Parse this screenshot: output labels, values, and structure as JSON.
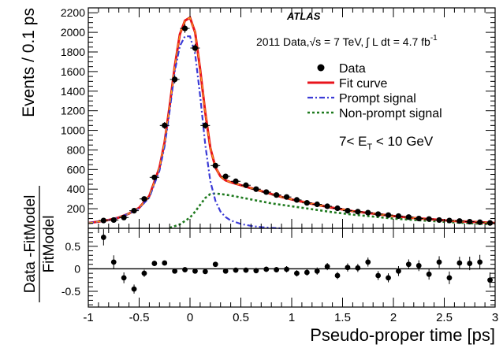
{
  "chart_data": {
    "type": "scatter",
    "experiment": "ATLAS",
    "dataset_label": "2011 Data,",
    "energy_label": "√s = 7 TeV,",
    "lumi_label": "∫ L dt = 4.7 fb",
    "lumi_superscript": "-1",
    "kinematic_range": "7< E_T < 10 GeV",
    "kinematic_parts": {
      "left": "7< E",
      "sub": "T",
      "right": " < 10 GeV"
    },
    "xlabel": "Pseudo-proper time [ps]",
    "ylabel_top": "Events / 0.1 ps",
    "ylabel_bottom_num": "Data -FitModel",
    "ylabel_bottom_den": "FitModel",
    "xlim": [
      -1,
      3
    ],
    "top_ylim": [
      0,
      2250
    ],
    "bottom_ylim": [
      -0.85,
      0.9
    ],
    "x_ticks": [
      "-1",
      "-0.5",
      "0",
      "0.5",
      "1",
      "1.5",
      "2",
      "2.5",
      "3"
    ],
    "x_tick_values": [
      -1,
      -0.5,
      0,
      0.5,
      1,
      1.5,
      2,
      2.5,
      3
    ],
    "top_y_ticks": [
      "200",
      "400",
      "600",
      "800",
      "1000",
      "1200",
      "1400",
      "1600",
      "1800",
      "2000",
      "2200"
    ],
    "top_y_tick_values": [
      200,
      400,
      600,
      800,
      1000,
      1200,
      1400,
      1600,
      1800,
      2000,
      2200
    ],
    "bottom_y_ticks": [
      "-0.5",
      "0",
      "0.5"
    ],
    "bottom_y_tick_values": [
      -0.5,
      0,
      0.5
    ],
    "legend": [
      {
        "label": "Data",
        "style": "marker",
        "color": "#000000"
      },
      {
        "label": "Fit curve",
        "style": "solid",
        "color": "#e8141c"
      },
      {
        "label": "Prompt signal",
        "style": "dashdot",
        "color": "#3b3bd6"
      },
      {
        "label": "Non-prompt signal",
        "style": "dotted",
        "color": "#1e7a1e"
      }
    ],
    "data_points": {
      "x": [
        -0.85,
        -0.75,
        -0.65,
        -0.55,
        -0.45,
        -0.35,
        -0.25,
        -0.15,
        -0.05,
        0.05,
        0.15,
        0.25,
        0.35,
        0.45,
        0.55,
        0.65,
        0.75,
        0.85,
        0.95,
        1.05,
        1.15,
        1.25,
        1.35,
        1.45,
        1.55,
        1.65,
        1.75,
        1.85,
        1.95,
        2.05,
        2.15,
        2.25,
        2.35,
        2.45,
        2.55,
        2.65,
        2.75,
        2.85,
        2.95
      ],
      "y": [
        80,
        85,
        110,
        180,
        300,
        520,
        1050,
        1520,
        2040,
        1840,
        1050,
        640,
        530,
        480,
        440,
        400,
        370,
        340,
        320,
        290,
        260,
        245,
        225,
        205,
        180,
        170,
        160,
        145,
        135,
        125,
        115,
        100,
        95,
        85,
        80,
        75,
        68,
        62,
        55
      ],
      "yerr": [
        12,
        12,
        14,
        18,
        22,
        28,
        35,
        40,
        45,
        43,
        33,
        26,
        23,
        22,
        21,
        20,
        19,
        18,
        18,
        17,
        16,
        16,
        15,
        14,
        13,
        13,
        13,
        12,
        12,
        11,
        11,
        10,
        10,
        9,
        9,
        9,
        8,
        8,
        8
      ]
    },
    "fit_curve": {
      "x": [
        -1,
        -0.9,
        -0.8,
        -0.7,
        -0.6,
        -0.5,
        -0.4,
        -0.3,
        -0.25,
        -0.2,
        -0.15,
        -0.1,
        -0.05,
        0,
        0.05,
        0.1,
        0.15,
        0.2,
        0.25,
        0.3,
        0.35,
        0.4,
        0.5,
        0.6,
        0.7,
        0.8,
        0.9,
        1.0,
        1.2,
        1.4,
        1.6,
        1.8,
        2.0,
        2.2,
        2.4,
        2.6,
        2.8,
        3.0
      ],
      "y": [
        55,
        68,
        85,
        110,
        150,
        210,
        330,
        620,
        880,
        1250,
        1650,
        1980,
        2120,
        2150,
        2000,
        1620,
        1180,
        820,
        620,
        530,
        490,
        470,
        440,
        410,
        380,
        350,
        320,
        295,
        250,
        210,
        175,
        150,
        125,
        105,
        90,
        75,
        65,
        55
      ]
    },
    "prompt_curve": {
      "x": [
        -1,
        -0.9,
        -0.8,
        -0.7,
        -0.6,
        -0.5,
        -0.4,
        -0.3,
        -0.25,
        -0.2,
        -0.15,
        -0.1,
        -0.05,
        0,
        0.05,
        0.1,
        0.15,
        0.2,
        0.25,
        0.3,
        0.35,
        0.4,
        0.5,
        0.6,
        0.7,
        0.8,
        0.9
      ],
      "y": [
        55,
        68,
        85,
        110,
        150,
        205,
        315,
        590,
        840,
        1200,
        1600,
        1860,
        1960,
        1960,
        1780,
        1350,
        850,
        480,
        280,
        170,
        115,
        80,
        45,
        25,
        12,
        5,
        0
      ]
    },
    "nonprompt_curve": {
      "x": [
        -0.2,
        -0.1,
        0,
        0.05,
        0.1,
        0.15,
        0.2,
        0.25,
        0.3,
        0.4,
        0.5,
        0.6,
        0.7,
        0.8,
        1.0,
        1.2,
        1.4,
        1.6,
        1.8,
        2.0,
        2.2,
        2.4,
        2.6,
        2.8,
        3.0
      ],
      "y": [
        5,
        40,
        110,
        170,
        240,
        310,
        350,
        355,
        350,
        335,
        315,
        295,
        275,
        255,
        225,
        195,
        165,
        140,
        120,
        100,
        85,
        72,
        60,
        50,
        42
      ]
    },
    "ratio_points": {
      "x": [
        -0.85,
        -0.75,
        -0.65,
        -0.55,
        -0.45,
        -0.35,
        -0.25,
        -0.15,
        -0.05,
        0.05,
        0.15,
        0.25,
        0.35,
        0.45,
        0.55,
        0.65,
        0.75,
        0.85,
        0.95,
        1.05,
        1.15,
        1.25,
        1.35,
        1.45,
        1.55,
        1.65,
        1.75,
        1.85,
        1.95,
        2.05,
        2.15,
        2.25,
        2.35,
        2.45,
        2.55,
        2.65,
        2.75,
        2.85,
        2.95
      ],
      "y": [
        0.7,
        0.15,
        -0.2,
        -0.45,
        -0.1,
        0.12,
        0.13,
        -0.05,
        -0.02,
        -0.05,
        -0.06,
        0.1,
        -0.05,
        -0.03,
        -0.03,
        -0.04,
        -0.01,
        -0.02,
        -0.01,
        -0.1,
        -0.08,
        -0.05,
        0.05,
        -0.15,
        0.03,
        0.02,
        0.15,
        -0.15,
        -0.2,
        -0.05,
        0.1,
        0.07,
        -0.12,
        0.15,
        -0.2,
        0.13,
        0.12,
        0.15,
        -0.25
      ],
      "yerr": [
        0.18,
        0.15,
        0.12,
        0.1,
        0.08,
        0.06,
        0.04,
        0.03,
        0.02,
        0.02,
        0.03,
        0.05,
        0.05,
        0.05,
        0.05,
        0.06,
        0.06,
        0.06,
        0.07,
        0.07,
        0.07,
        0.08,
        0.08,
        0.08,
        0.09,
        0.09,
        0.1,
        0.1,
        0.1,
        0.11,
        0.11,
        0.12,
        0.12,
        0.13,
        0.14,
        0.14,
        0.15,
        0.16,
        0.17
      ]
    },
    "grid": false,
    "legend_position": "top-right"
  }
}
